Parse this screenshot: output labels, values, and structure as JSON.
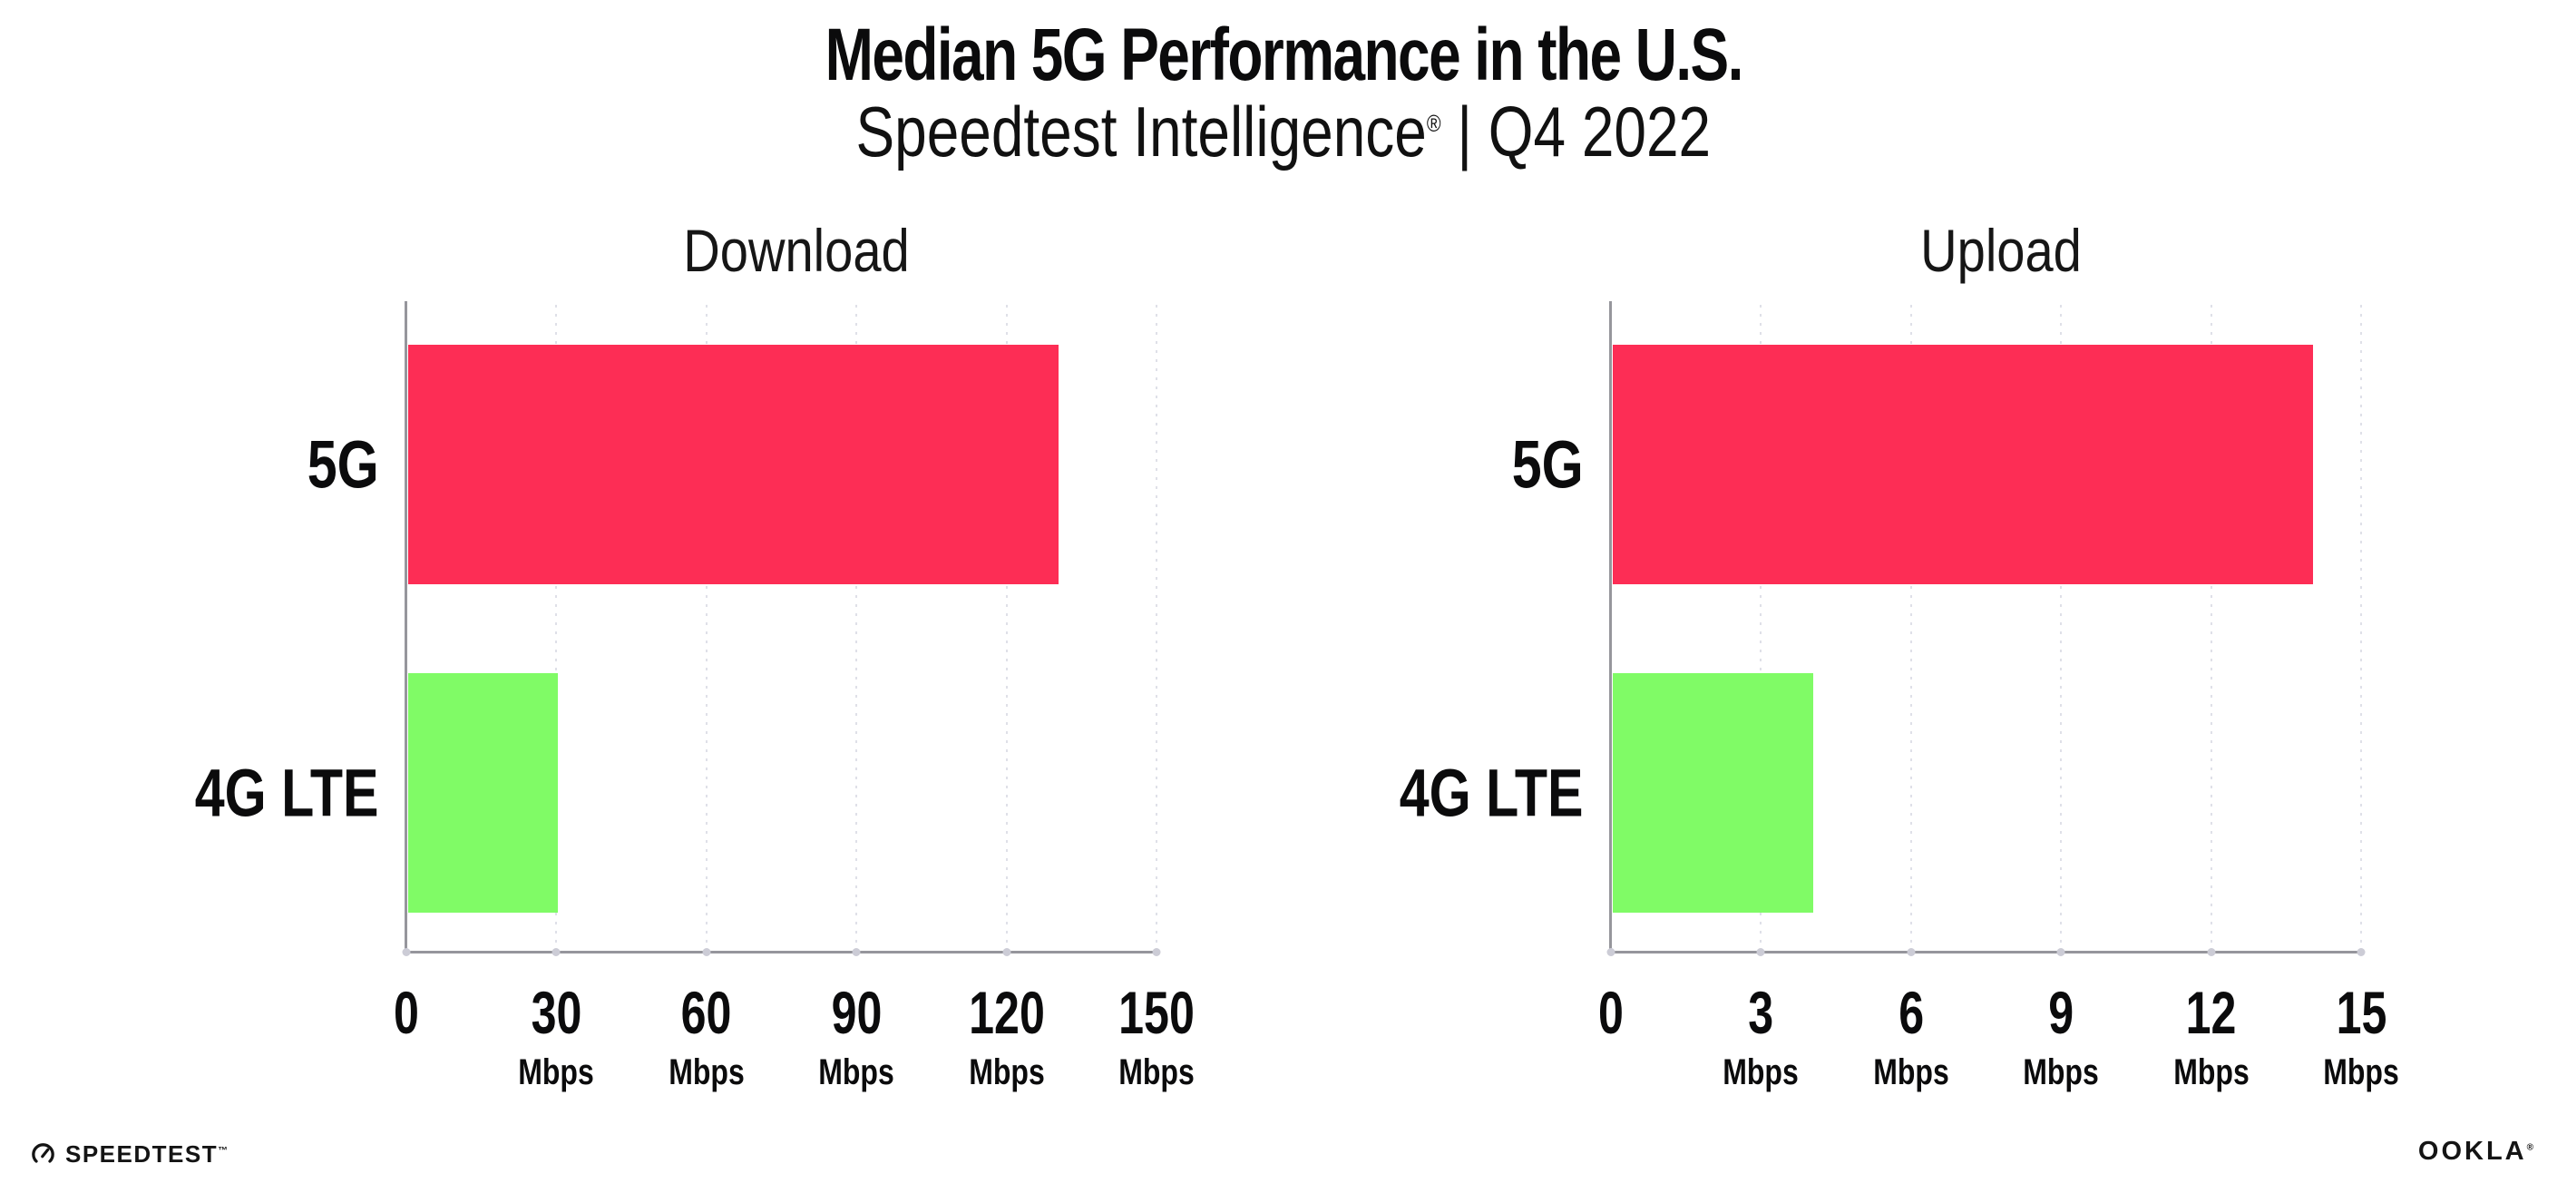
{
  "header": {
    "title": "Median 5G Performance in the U.S.",
    "subtitle_brand": "Speedtest Intelligence",
    "subtitle_reg": "®",
    "subtitle_rest": " | Q4 2022"
  },
  "chart_data": [
    {
      "type": "bar",
      "orientation": "horizontal",
      "title": "Download",
      "categories": [
        "5G",
        "4G LTE"
      ],
      "values": [
        130,
        30
      ],
      "unit": "Mbps",
      "xlim": [
        0,
        150
      ],
      "xticks": [
        0,
        30,
        60,
        90,
        120,
        150
      ],
      "bar_colors": [
        "#fd2d55",
        "#80fb66"
      ],
      "grid": "dotted-vertical",
      "legend": "none"
    },
    {
      "type": "bar",
      "orientation": "horizontal",
      "title": "Upload",
      "categories": [
        "5G",
        "4G LTE"
      ],
      "values": [
        14,
        4
      ],
      "unit": "Mbps",
      "xlim": [
        0,
        15
      ],
      "xticks": [
        0,
        3,
        6,
        9,
        12,
        15
      ],
      "bar_colors": [
        "#fd2d55",
        "#80fb66"
      ],
      "grid": "dotted-vertical",
      "legend": "none"
    }
  ],
  "footer": {
    "speedtest_wordmark": "SPEEDTEST",
    "speedtest_tm": "™",
    "ookla_wordmark": "OOKLA",
    "ookla_reg": "®"
  },
  "colors": {
    "bar_5g": "#fd2d55",
    "bar_4g_lte": "#80fb66",
    "axis": "#96969c",
    "gridline": "#dfe0e8"
  }
}
